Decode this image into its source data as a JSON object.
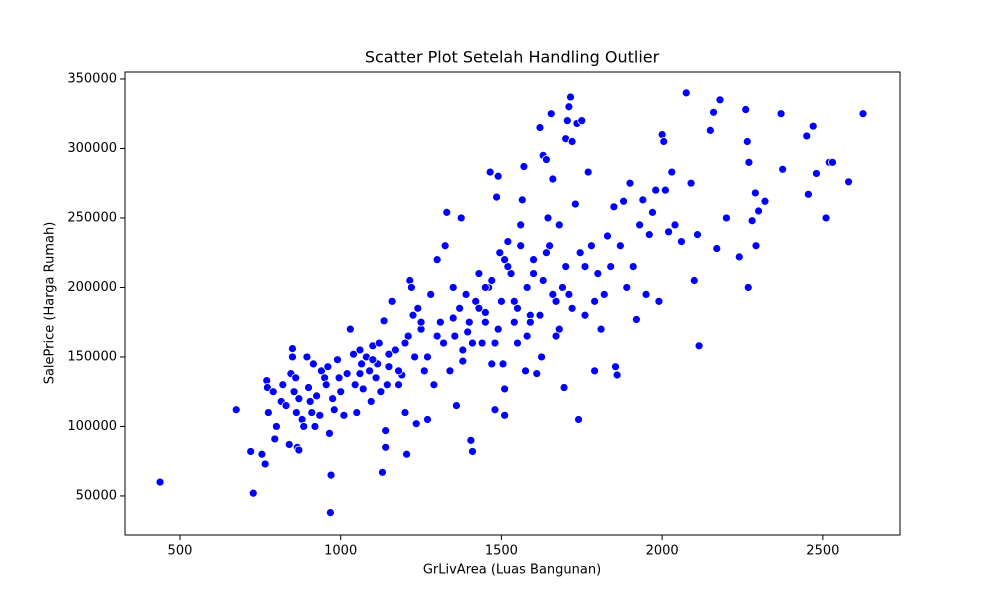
{
  "chart_data": {
    "type": "scatter",
    "title": "Scatter Plot Setelah Handling Outlier",
    "x_label": "GrLivArea (Luas Bangunan)",
    "y_label": "SalePrice (Harga Rumah)",
    "color": "#0000ff",
    "xlim": [
      329,
      2740
    ],
    "ylim": [
      21900,
      355000
    ],
    "xticks": [
      500,
      1000,
      1500,
      2000,
      2500
    ],
    "yticks": [
      50000,
      100000,
      150000,
      200000,
      250000,
      300000,
      350000
    ],
    "x": [
      438,
      675,
      720,
      728,
      755,
      765,
      770,
      772,
      775,
      790,
      800,
      795,
      820,
      815,
      830,
      840,
      850,
      850,
      845,
      860,
      855,
      870,
      862,
      865,
      870,
      880,
      885,
      895,
      900,
      905,
      910,
      915,
      920,
      925,
      935,
      940,
      950,
      955,
      960,
      965,
      970,
      968,
      975,
      980,
      990,
      995,
      1000,
      1010,
      1020,
      1030,
      1040,
      1045,
      1050,
      1060,
      1065,
      1070,
      1080,
      1090,
      1095,
      1100,
      1110,
      1115,
      1120,
      1125,
      1130,
      1135,
      1140,
      1140,
      1145,
      1150,
      1160,
      1170,
      1180,
      1190,
      1200,
      1205,
      1210,
      1215,
      1220,
      1225,
      1230,
      1235,
      1240,
      1250,
      1260,
      1270,
      1280,
      1290,
      1300,
      1310,
      1320,
      1325,
      1330,
      1340,
      1350,
      1355,
      1360,
      1370,
      1375,
      1380,
      1390,
      1395,
      1400,
      1405,
      1410,
      1420,
      1430,
      1440,
      1450,
      1460,
      1465,
      1470,
      1480,
      1485,
      1490,
      1495,
      1500,
      1505,
      1510,
      1510,
      1520,
      1530,
      1540,
      1550,
      1560,
      1565,
      1570,
      1575,
      1580,
      1590,
      1600,
      1610,
      1620,
      1625,
      1630,
      1640,
      1645,
      1650,
      1655,
      1660,
      1670,
      1680,
      1690,
      1695,
      1700,
      1705,
      1710,
      1715,
      1720,
      1730,
      1735,
      1740,
      1745,
      1750,
      1760,
      1770,
      1780,
      1790,
      1800,
      1810,
      1820,
      1830,
      1840,
      1850,
      1855,
      1860,
      1870,
      1880,
      1890,
      1900,
      1910,
      1920,
      1930,
      1940,
      1950,
      1960,
      1970,
      1980,
      1990,
      2000,
      2005,
      2010,
      2020,
      2030,
      2040,
      2060,
      2075,
      2090,
      2100,
      2110,
      2115,
      2150,
      2160,
      2170,
      2180,
      2200,
      2240,
      2260,
      2265,
      2270,
      2268,
      2280,
      2290,
      2292,
      2300,
      2320,
      2370,
      2375,
      2450,
      2455,
      2470,
      2480,
      2510,
      2520,
      2530,
      2580,
      2625,
      1410,
      1430,
      1450,
      1470,
      1490,
      1520,
      1540,
      1560,
      1580,
      1600,
      1620,
      1640,
      1660,
      1680,
      1700,
      1720,
      1450,
      1480,
      1510,
      1550,
      1590,
      1630,
      1670,
      1710,
      1760,
      1790,
      1380,
      1350,
      1300,
      1270,
      1250,
      1200,
      1180,
      1150,
      1100,
      1060
    ],
    "values": [
      60000,
      112000,
      82000,
      52000,
      80000,
      73000,
      133000,
      128000,
      110000,
      125000,
      100000,
      91000,
      130000,
      118000,
      115000,
      87000,
      156000,
      150000,
      138000,
      135000,
      125000,
      120000,
      110000,
      85000,
      83000,
      105000,
      100000,
      150000,
      128000,
      118000,
      110000,
      145000,
      100000,
      122000,
      108000,
      140000,
      135000,
      130000,
      143000,
      95000,
      65000,
      38000,
      120000,
      112000,
      148000,
      135000,
      125000,
      108000,
      138000,
      170000,
      152000,
      130000,
      110000,
      155000,
      145000,
      127000,
      150000,
      140000,
      118000,
      158000,
      135000,
      145000,
      160000,
      125000,
      67000,
      176000,
      97000,
      85000,
      130000,
      143000,
      190000,
      155000,
      130000,
      137000,
      110000,
      80000,
      165000,
      205000,
      200000,
      180000,
      150000,
      102000,
      185000,
      170000,
      140000,
      105000,
      195000,
      130000,
      220000,
      175000,
      160000,
      230000,
      254000,
      140000,
      200000,
      165000,
      115000,
      185000,
      250000,
      147000,
      195000,
      168000,
      175000,
      90000,
      82000,
      190000,
      210000,
      160000,
      182000,
      200000,
      283000,
      145000,
      112000,
      265000,
      280000,
      225000,
      190000,
      145000,
      108000,
      127000,
      233000,
      210000,
      175000,
      160000,
      245000,
      263000,
      287000,
      140000,
      200000,
      180000,
      220000,
      138000,
      315000,
      150000,
      295000,
      292000,
      250000,
      230000,
      325000,
      278000,
      190000,
      245000,
      200000,
      128000,
      307000,
      320000,
      330000,
      337000,
      305000,
      260000,
      318000,
      105000,
      225000,
      320000,
      180000,
      283000,
      230000,
      140000,
      210000,
      170000,
      195000,
      237000,
      215000,
      258000,
      143000,
      137000,
      230000,
      262000,
      200000,
      275000,
      215000,
      177000,
      245000,
      263000,
      195000,
      238000,
      254000,
      270000,
      190000,
      310000,
      305000,
      270000,
      240000,
      283000,
      245000,
      233000,
      340000,
      275000,
      205000,
      238000,
      158000,
      313000,
      326000,
      228000,
      335000,
      250000,
      222000,
      328000,
      305000,
      290000,
      200000,
      248000,
      268000,
      230000,
      255000,
      262000,
      325000,
      285000,
      309000,
      267000,
      316000,
      282000,
      250000,
      290000,
      290000,
      276000,
      325000,
      160000,
      185000,
      175000,
      205000,
      170000,
      215000,
      190000,
      230000,
      165000,
      210000,
      180000,
      225000,
      195000,
      170000,
      215000,
      185000,
      200000,
      160000,
      220000,
      185000,
      175000,
      205000,
      165000,
      195000,
      215000,
      190000,
      155000,
      178000,
      165000,
      150000,
      175000,
      160000,
      140000,
      152000,
      148000,
      138000
    ]
  }
}
